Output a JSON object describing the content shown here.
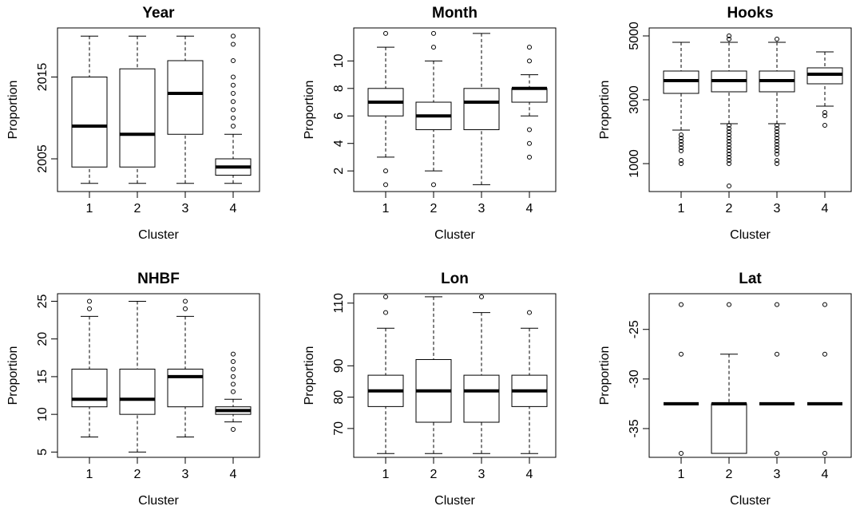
{
  "chart_data": [
    {
      "type": "box",
      "title": "Year",
      "xlabel": "Cluster",
      "ylabel": "Proportion",
      "categories": [
        "1",
        "2",
        "3",
        "4"
      ],
      "ylim": [
        2001,
        2021
      ],
      "yticks": [
        2005,
        2015
      ],
      "boxes": [
        {
          "low": 2002,
          "q1": 2004,
          "median": 2009,
          "q3": 2015,
          "high": 2020,
          "outliers": []
        },
        {
          "low": 2002,
          "q1": 2004,
          "median": 2008,
          "q3": 2016,
          "high": 2020,
          "outliers": []
        },
        {
          "low": 2002,
          "q1": 2008,
          "median": 2013,
          "q3": 2017,
          "high": 2020,
          "outliers": []
        },
        {
          "low": 2002,
          "q1": 2003,
          "median": 2004,
          "q3": 2005,
          "high": 2008,
          "outliers": [
            2009,
            2010,
            2011,
            2012,
            2013,
            2014,
            2015,
            2017,
            2019,
            2020
          ]
        }
      ]
    },
    {
      "type": "box",
      "title": "Month",
      "xlabel": "Cluster",
      "ylabel": "Proportion",
      "categories": [
        "1",
        "2",
        "3",
        "4"
      ],
      "ylim": [
        0.5,
        12.4
      ],
      "yticks": [
        2,
        4,
        6,
        8,
        10
      ],
      "boxes": [
        {
          "low": 3,
          "q1": 6,
          "median": 7,
          "q3": 8,
          "high": 11,
          "outliers": [
            1,
            2,
            12
          ]
        },
        {
          "low": 2,
          "q1": 5,
          "median": 6,
          "q3": 7,
          "high": 10,
          "outliers": [
            1,
            11,
            12
          ]
        },
        {
          "low": 1,
          "q1": 5,
          "median": 7,
          "q3": 8,
          "high": 12,
          "outliers": []
        },
        {
          "low": 6,
          "q1": 7,
          "median": 8,
          "q3": 8,
          "high": 9,
          "outliers": [
            3,
            4,
            5,
            10,
            11
          ]
        }
      ]
    },
    {
      "type": "box",
      "title": "Hooks",
      "xlabel": "Cluster",
      "ylabel": "Proportion",
      "categories": [
        "1",
        "2",
        "3",
        "4"
      ],
      "ylim": [
        125,
        5250
      ],
      "yticks": [
        1000,
        3000,
        5000
      ],
      "boxes": [
        {
          "low": 2050,
          "q1": 3200,
          "median": 3600,
          "q3": 3900,
          "high": 4800,
          "outliers": [
            1000,
            1100,
            1400,
            1500,
            1600,
            1700,
            1800,
            1900
          ]
        },
        {
          "low": 2250,
          "q1": 3250,
          "median": 3600,
          "q3": 3900,
          "high": 4800,
          "outliers": [
            300,
            1000,
            1100,
            1200,
            1300,
            1400,
            1500,
            1600,
            1700,
            1800,
            1900,
            2000,
            2100,
            2200,
            4900,
            5000
          ]
        },
        {
          "low": 2250,
          "q1": 3250,
          "median": 3600,
          "q3": 3900,
          "high": 4800,
          "outliers": [
            1000,
            1100,
            1300,
            1400,
            1500,
            1600,
            1700,
            1800,
            1900,
            2000,
            2100,
            2200,
            4900
          ]
        },
        {
          "low": 2800,
          "q1": 3500,
          "median": 3800,
          "q3": 4000,
          "high": 4500,
          "outliers": [
            2200,
            2500,
            2600
          ]
        }
      ]
    },
    {
      "type": "box",
      "title": "NHBF",
      "xlabel": "Cluster",
      "ylabel": "Proportion",
      "categories": [
        "1",
        "2",
        "3",
        "4"
      ],
      "ylim": [
        4.3,
        26
      ],
      "yticks": [
        5,
        10,
        15,
        20,
        25
      ],
      "boxes": [
        {
          "low": 7,
          "q1": 11,
          "median": 12,
          "q3": 16,
          "high": 23,
          "outliers": [
            24,
            25
          ]
        },
        {
          "low": 5,
          "q1": 10,
          "median": 12,
          "q3": 16,
          "high": 25,
          "outliers": []
        },
        {
          "low": 7,
          "q1": 11,
          "median": 15,
          "q3": 16,
          "high": 23,
          "outliers": [
            24,
            25
          ]
        },
        {
          "low": 9,
          "q1": 10,
          "median": 10.5,
          "q3": 11,
          "high": 12,
          "outliers": [
            8,
            13,
            14,
            15,
            16,
            17,
            18
          ]
        }
      ]
    },
    {
      "type": "box",
      "title": "Lon",
      "xlabel": "Cluster",
      "ylabel": "Proportion",
      "categories": [
        "1",
        "2",
        "3",
        "4"
      ],
      "ylim": [
        60.8,
        113
      ],
      "yticks": [
        70,
        80,
        90,
        110
      ],
      "boxes": [
        {
          "low": 62,
          "q1": 77,
          "median": 82,
          "q3": 87,
          "high": 102,
          "outliers": [
            107,
            112
          ]
        },
        {
          "low": 62,
          "q1": 72,
          "median": 82,
          "q3": 92,
          "high": 112,
          "outliers": []
        },
        {
          "low": 62,
          "q1": 72,
          "median": 82,
          "q3": 87,
          "high": 107,
          "outliers": [
            112
          ]
        },
        {
          "low": 62,
          "q1": 77,
          "median": 82,
          "q3": 87,
          "high": 102,
          "outliers": [
            107
          ]
        }
      ]
    },
    {
      "type": "box",
      "title": "Lat",
      "xlabel": "Cluster",
      "ylabel": "Proportion",
      "categories": [
        "1",
        "2",
        "3",
        "4"
      ],
      "ylim": [
        -37.9,
        -21.4
      ],
      "yticks": [
        -25,
        -30,
        -35
      ],
      "boxes": [
        {
          "low": -32.5,
          "q1": -32.5,
          "median": -32.5,
          "q3": -32.5,
          "high": -32.5,
          "outliers": [
            -22.5,
            -27.5,
            -37.5
          ]
        },
        {
          "low": -37.5,
          "q1": -37.5,
          "median": -32.5,
          "q3": -32.5,
          "high": -27.5,
          "outliers": [
            -22.5
          ]
        },
        {
          "low": -32.5,
          "q1": -32.5,
          "median": -32.5,
          "q3": -32.5,
          "high": -32.5,
          "outliers": [
            -22.5,
            -27.5,
            -37.5
          ]
        },
        {
          "low": -32.5,
          "q1": -32.5,
          "median": -32.5,
          "q3": -32.5,
          "high": -32.5,
          "outliers": [
            -22.5,
            -27.5,
            -37.5
          ]
        }
      ]
    }
  ]
}
